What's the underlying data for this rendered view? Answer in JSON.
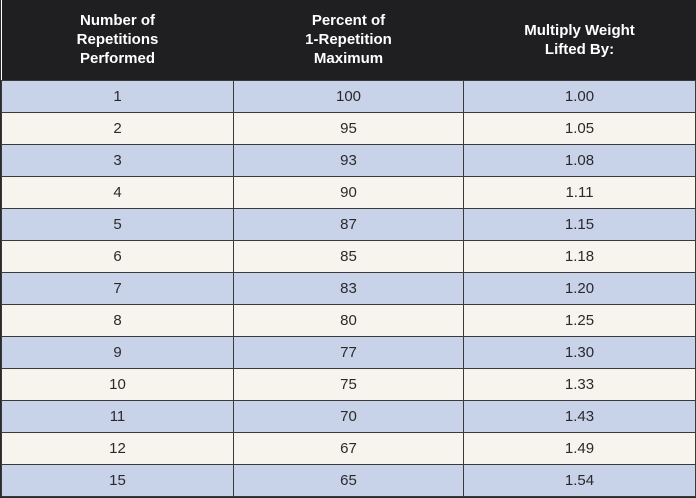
{
  "table": {
    "headers": [
      [
        "Number of",
        "Repetitions",
        "Performed"
      ],
      [
        "Percent of",
        "1-Repetition",
        "Maximum"
      ],
      [
        "Multiply Weight",
        "Lifted By:"
      ]
    ],
    "rows": [
      [
        "1",
        "100",
        "1.00"
      ],
      [
        "2",
        "95",
        "1.05"
      ],
      [
        "3",
        "93",
        "1.08"
      ],
      [
        "4",
        "90",
        "1.11"
      ],
      [
        "5",
        "87",
        "1.15"
      ],
      [
        "6",
        "85",
        "1.18"
      ],
      [
        "7",
        "83",
        "1.20"
      ],
      [
        "8",
        "80",
        "1.25"
      ],
      [
        "9",
        "77",
        "1.30"
      ],
      [
        "10",
        "75",
        "1.33"
      ],
      [
        "11",
        "70",
        "1.43"
      ],
      [
        "12",
        "67",
        "1.49"
      ],
      [
        "15",
        "65",
        "1.54"
      ]
    ]
  },
  "colors": {
    "header_bg": "#1f1e20",
    "row_blue": "#c8d2e8",
    "row_cream": "#f6f4ec"
  }
}
